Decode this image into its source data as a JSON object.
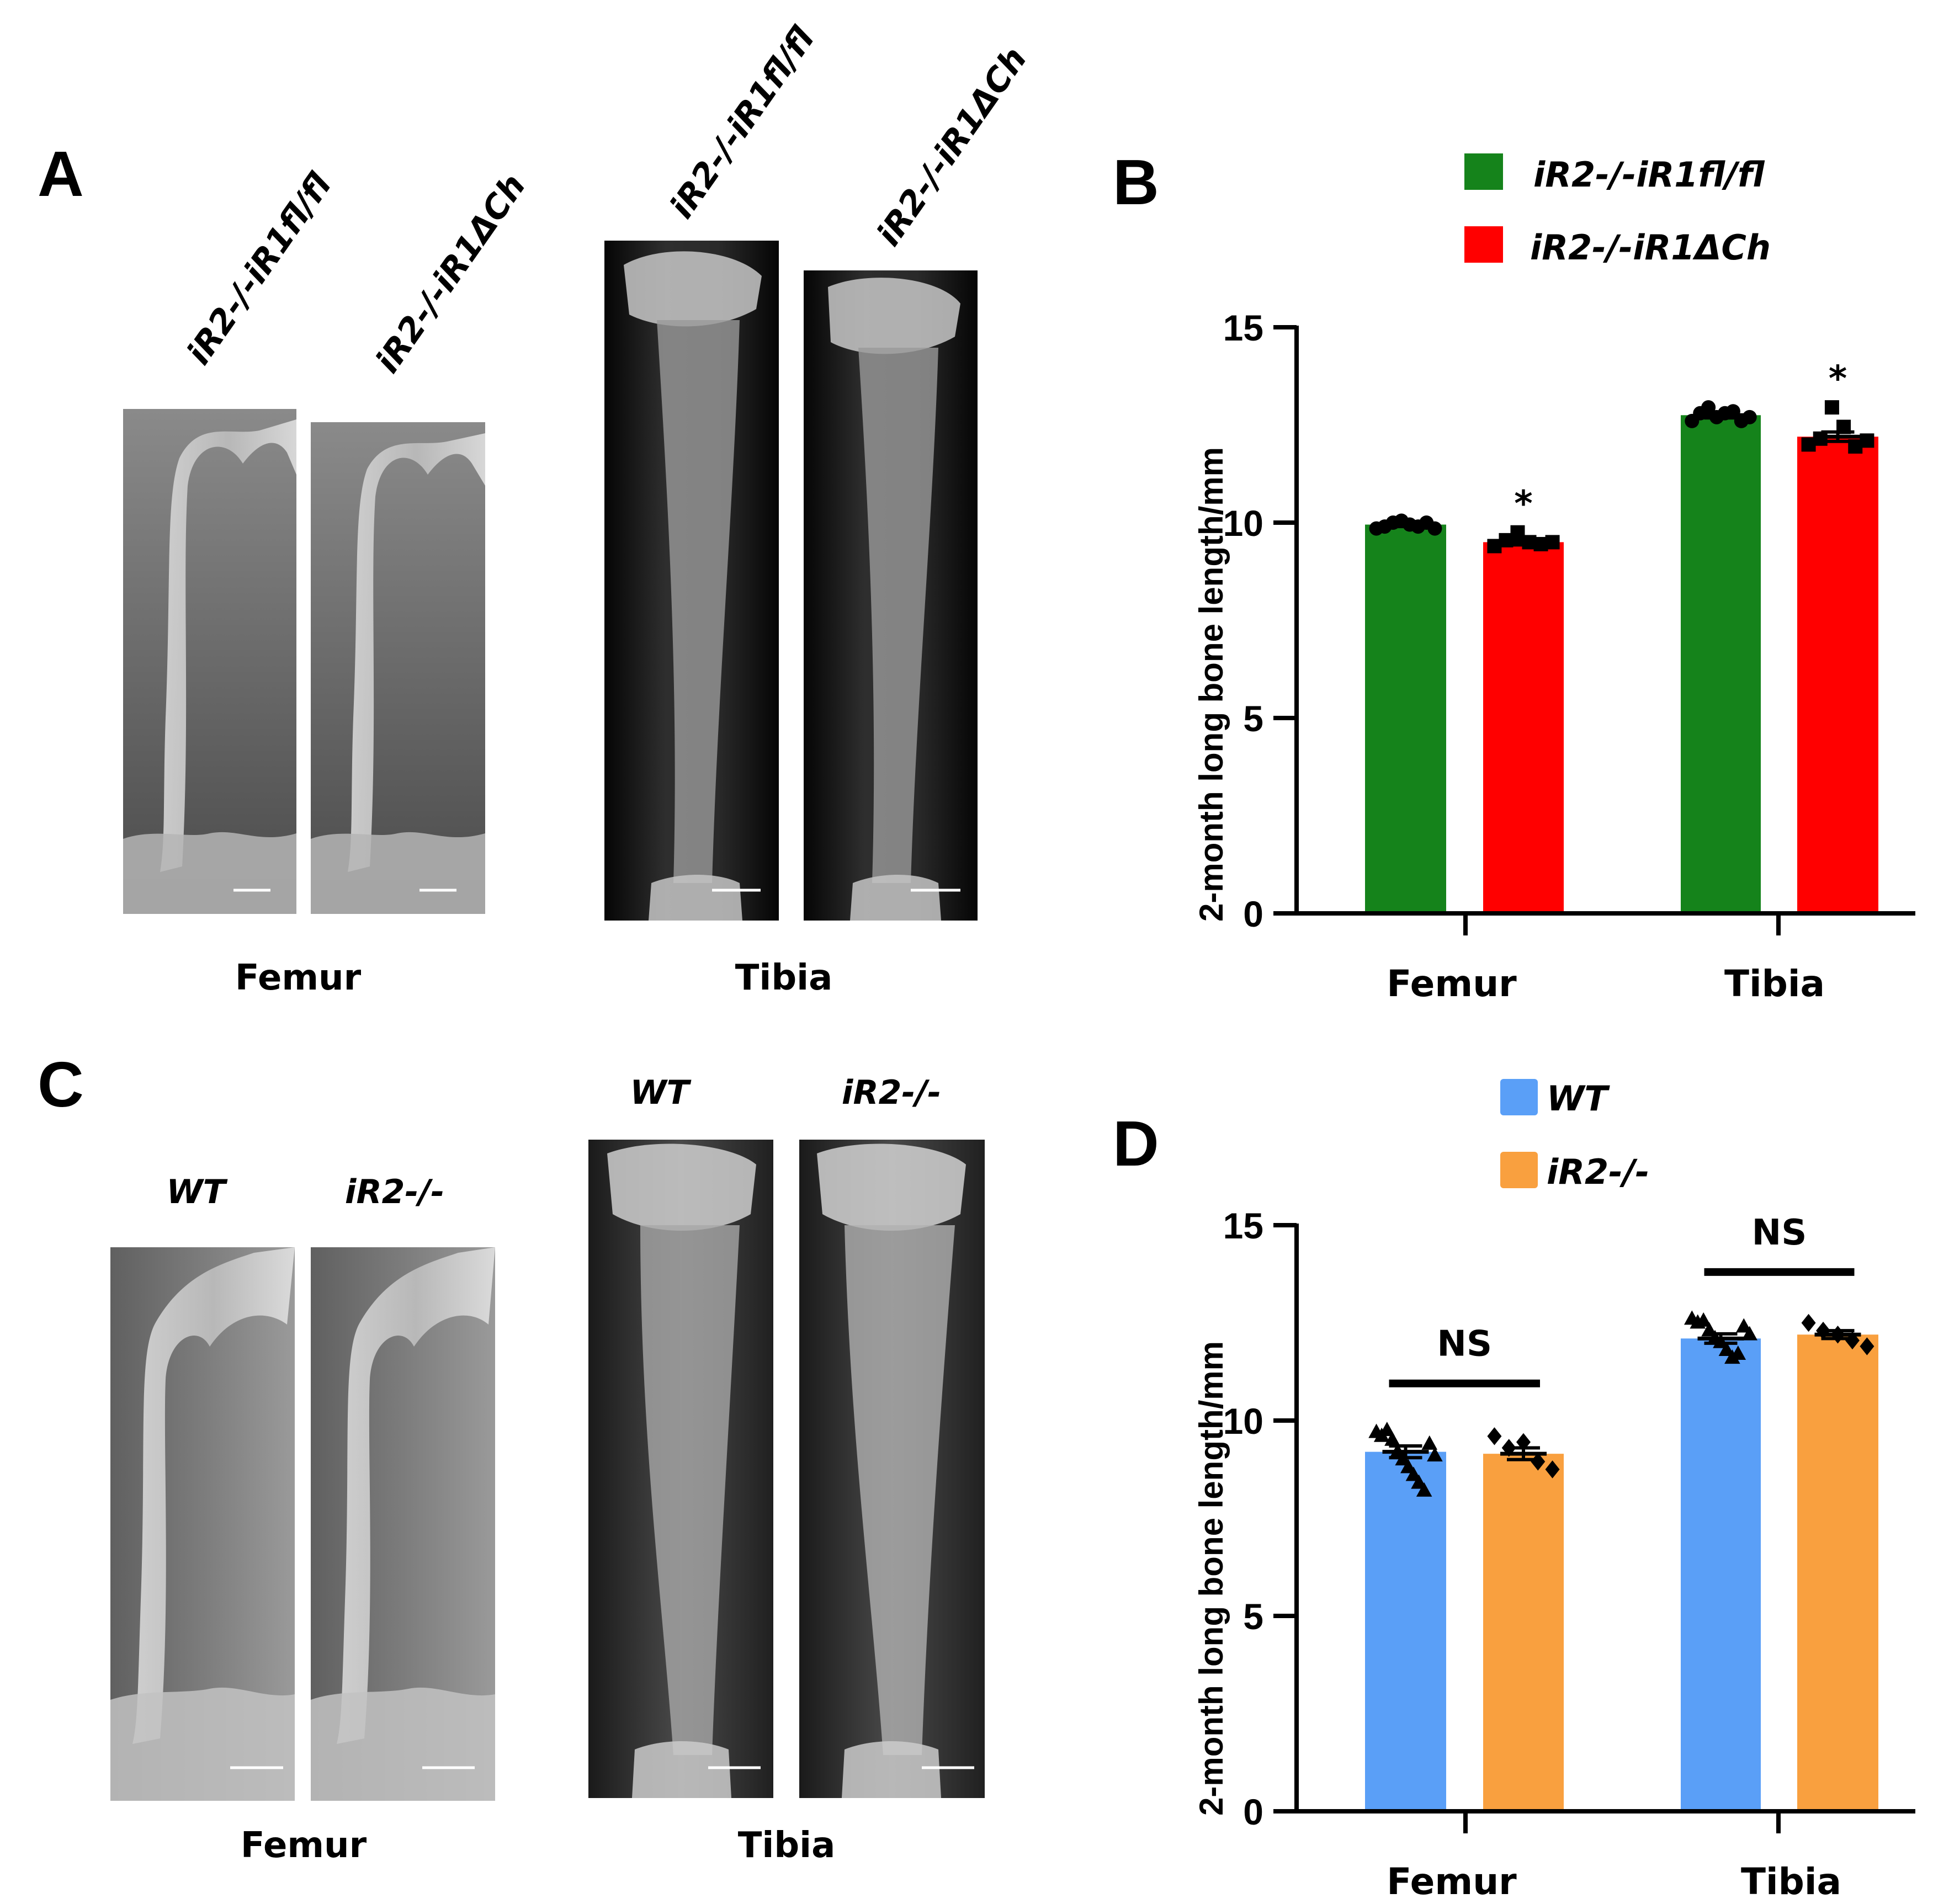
{
  "panel_labels": {
    "a": "A",
    "b": "B",
    "c": "C",
    "d": "D"
  },
  "panel_a": {
    "femur_genotypes": [
      "iR2-/-iR1fl/fl",
      "iR2-/-iR1ΔCh"
    ],
    "tibia_genotypes": [
      "iR2-/-iR1fl/fl",
      "iR2-/-iR1ΔCh"
    ],
    "femur_label": "Femur",
    "tibia_label": "Tibia",
    "image_description": "X-ray radiographs of femur and tibia"
  },
  "panel_c": {
    "femur_genotypes": [
      "WT",
      "iR2-/-"
    ],
    "tibia_genotypes": [
      "WT",
      "iR2-/-"
    ],
    "femur_label": "Femur",
    "tibia_label": "Tibia"
  },
  "chart_data": [
    {
      "panel": "B",
      "type": "bar",
      "title": "",
      "xlabel": "",
      "ylabel": "2-month long bone length/mm",
      "ylim": [
        0,
        15
      ],
      "yticks": [
        0,
        5,
        10,
        15
      ],
      "categories": [
        "Femur",
        "Tibia"
      ],
      "legend_position": "top-right",
      "series": [
        {
          "name": "iR2-/-iR1fl/fl",
          "color": "#15831b",
          "marker": "circle",
          "values": [
            9.95,
            12.75
          ],
          "sem": [
            0.05,
            0.07
          ],
          "points": [
            [
              9.85,
              9.9,
              10.0,
              10.05,
              9.95,
              9.9,
              10.0,
              9.85
            ],
            [
              12.6,
              12.8,
              12.95,
              12.7,
              12.8,
              12.85,
              12.6,
              12.7
            ]
          ]
        },
        {
          "name": "iR2-/-iR1ΔCh",
          "color": "#ff0000",
          "marker": "square",
          "values": [
            9.5,
            12.2
          ],
          "sem": [
            0.07,
            0.12
          ],
          "points": [
            [
              9.4,
              9.55,
              9.75,
              9.5,
              9.45,
              9.5
            ],
            [
              12.0,
              12.15,
              12.95,
              12.45,
              11.95,
              12.1
            ]
          ]
        }
      ],
      "annotations": [
        {
          "category": "Femur",
          "text": "*"
        },
        {
          "category": "Tibia",
          "text": "*"
        }
      ]
    },
    {
      "panel": "D",
      "type": "bar",
      "title": "",
      "xlabel": "",
      "ylabel": "2-month long bone length/mm",
      "ylim": [
        0,
        15
      ],
      "yticks": [
        0,
        5,
        10,
        15
      ],
      "categories": [
        "Femur",
        "Tibia"
      ],
      "legend_position": "top-right",
      "series": [
        {
          "name": "WT",
          "color": "#5a9ff7",
          "marker": "triangle",
          "values": [
            9.2,
            12.1
          ],
          "sem": [
            0.15,
            0.12
          ],
          "points": [
            [
              9.7,
              9.6,
              9.75,
              9.5,
              9.2,
              9.0,
              8.8,
              8.6,
              8.4,
              8.2,
              9.4,
              9.1
            ],
            [
              12.6,
              12.5,
              12.55,
              12.3,
              12.1,
              12.0,
              11.8,
              11.6,
              11.7,
              12.4,
              12.2
            ]
          ]
        },
        {
          "name": "iR2-/-",
          "color": "#f9a03f",
          "marker": "diamond",
          "values": [
            9.15,
            12.2
          ],
          "sem": [
            0.15,
            0.1
          ],
          "points": [
            [
              9.6,
              9.3,
              9.45,
              8.95,
              8.75
            ],
            [
              12.5,
              12.3,
              12.2,
              12.05,
              11.9
            ]
          ]
        }
      ],
      "annotations": [
        {
          "category": "Femur",
          "text": "NS"
        },
        {
          "category": "Tibia",
          "text": "NS"
        }
      ]
    }
  ]
}
